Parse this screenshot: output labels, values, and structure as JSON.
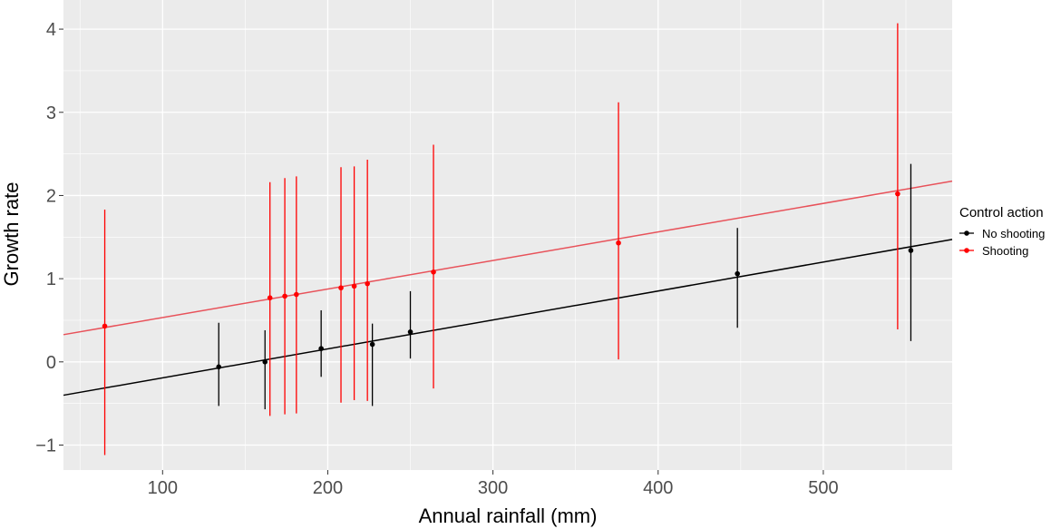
{
  "chart_data": {
    "type": "scatter",
    "xlabel": "Annual rainfall (mm)",
    "ylabel": "Growth rate",
    "xlim": [
      40,
      578
    ],
    "ylim": [
      -1.3,
      4.35
    ],
    "x_ticks": [
      100,
      200,
      300,
      400,
      500
    ],
    "x_tick_labels": [
      "100",
      "200",
      "300",
      "400",
      "500"
    ],
    "y_ticks": [
      -1,
      0,
      1,
      2,
      3,
      4
    ],
    "y_tick_labels": [
      "−1",
      "0",
      "1",
      "2",
      "3",
      "4"
    ],
    "grid": true,
    "legend": {
      "title": "Control action",
      "position": "right",
      "entries": [
        "No shooting",
        "Shooting"
      ]
    },
    "series": [
      {
        "name": "No shooting",
        "color": "#000000",
        "line_color": "#000000",
        "points": [
          {
            "x": 134,
            "y": -0.06,
            "lo": -0.53,
            "hi": 0.47
          },
          {
            "x": 162,
            "y": 0.0,
            "lo": -0.57,
            "hi": 0.38
          },
          {
            "x": 196,
            "y": 0.16,
            "lo": -0.18,
            "hi": 0.62
          },
          {
            "x": 227,
            "y": 0.21,
            "lo": -0.53,
            "hi": 0.46
          },
          {
            "x": 250,
            "y": 0.36,
            "lo": 0.04,
            "hi": 0.85
          },
          {
            "x": 448,
            "y": 1.06,
            "lo": 0.41,
            "hi": 1.61
          },
          {
            "x": 553,
            "y": 1.34,
            "lo": 0.25,
            "hi": 2.38
          }
        ],
        "fit": {
          "intercept": -0.54,
          "slope": 0.00348
        }
      },
      {
        "name": "Shooting",
        "color": "#ff0000",
        "line_color": "#e8525a",
        "points": [
          {
            "x": 65,
            "y": 0.43,
            "lo": -1.12,
            "hi": 1.83
          },
          {
            "x": 165,
            "y": 0.77,
            "lo": -0.65,
            "hi": 2.16
          },
          {
            "x": 174,
            "y": 0.79,
            "lo": -0.63,
            "hi": 2.21
          },
          {
            "x": 181,
            "y": 0.81,
            "lo": -0.62,
            "hi": 2.23
          },
          {
            "x": 208,
            "y": 0.89,
            "lo": -0.49,
            "hi": 2.34
          },
          {
            "x": 216,
            "y": 0.91,
            "lo": -0.46,
            "hi": 2.35
          },
          {
            "x": 224,
            "y": 0.94,
            "lo": -0.47,
            "hi": 2.43
          },
          {
            "x": 264,
            "y": 1.08,
            "lo": -0.32,
            "hi": 2.61
          },
          {
            "x": 376,
            "y": 1.43,
            "lo": 0.03,
            "hi": 3.12
          },
          {
            "x": 545,
            "y": 2.02,
            "lo": 0.39,
            "hi": 4.07
          }
        ],
        "fit": {
          "intercept": 0.19,
          "slope": 0.00343
        }
      }
    ]
  }
}
